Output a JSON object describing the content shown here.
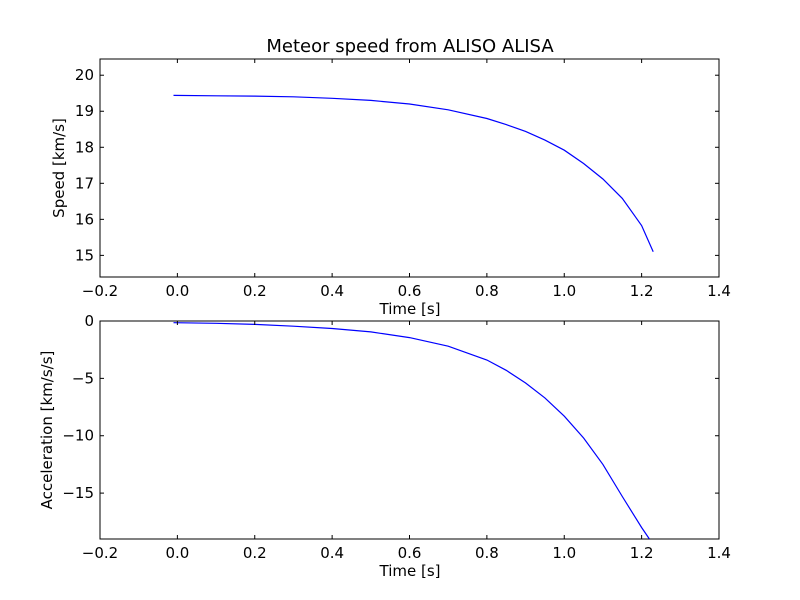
{
  "chart_data": [
    {
      "type": "line",
      "title": "Meteor speed from  ALISO ALISA",
      "xlabel": "Time [s]",
      "ylabel": "Speed [km/s]",
      "xlim": [
        -0.2,
        1.4
      ],
      "ylim": [
        14.4,
        20.45
      ],
      "x_ticks": [
        -0.2,
        0.0,
        0.2,
        0.4,
        0.6,
        0.8,
        1.0,
        1.2,
        1.4
      ],
      "x_tick_labels": [
        "−0.2",
        "0.0",
        "0.2",
        "0.4",
        "0.6",
        "0.8",
        "1.0",
        "1.2",
        "1.4"
      ],
      "y_ticks": [
        15,
        16,
        17,
        18,
        19,
        20
      ],
      "y_tick_labels": [
        "15",
        "16",
        "17",
        "18",
        "19",
        "20"
      ],
      "grid": false,
      "series": [
        {
          "color": "#0000ff",
          "x": [
            -0.01,
            0.1,
            0.2,
            0.3,
            0.4,
            0.5,
            0.6,
            0.7,
            0.8,
            0.85,
            0.9,
            0.95,
            1.0,
            1.05,
            1.1,
            1.15,
            1.2,
            1.23
          ],
          "y": [
            19.44,
            19.43,
            19.42,
            19.4,
            19.36,
            19.3,
            19.2,
            19.04,
            18.8,
            18.63,
            18.44,
            18.2,
            17.92,
            17.55,
            17.12,
            16.58,
            15.83,
            15.1
          ]
        }
      ]
    },
    {
      "type": "line",
      "title": "",
      "xlabel": "Time [s]",
      "ylabel": "Acceleration [km/s/s]",
      "xlim": [
        -0.2,
        1.4
      ],
      "ylim": [
        -19,
        0
      ],
      "x_ticks": [
        -0.2,
        0.0,
        0.2,
        0.4,
        0.6,
        0.8,
        1.0,
        1.2,
        1.4
      ],
      "x_tick_labels": [
        "−0.2",
        "0.0",
        "0.2",
        "0.4",
        "0.6",
        "0.8",
        "1.0",
        "1.2",
        "1.4"
      ],
      "y_ticks": [
        0,
        -5,
        -10,
        -15
      ],
      "y_tick_labels": [
        "0",
        "−5",
        "−10",
        "−15"
      ],
      "grid": false,
      "series": [
        {
          "color": "#0000ff",
          "x": [
            -0.01,
            0.1,
            0.2,
            0.3,
            0.4,
            0.5,
            0.6,
            0.7,
            0.8,
            0.85,
            0.9,
            0.95,
            1.0,
            1.05,
            1.1,
            1.15,
            1.2,
            1.22
          ],
          "y": [
            -0.15,
            -0.2,
            -0.3,
            -0.45,
            -0.65,
            -0.95,
            -1.45,
            -2.2,
            -3.4,
            -4.3,
            -5.4,
            -6.7,
            -8.3,
            -10.2,
            -12.5,
            -15.3,
            -18.0,
            -19.0
          ]
        }
      ]
    }
  ]
}
